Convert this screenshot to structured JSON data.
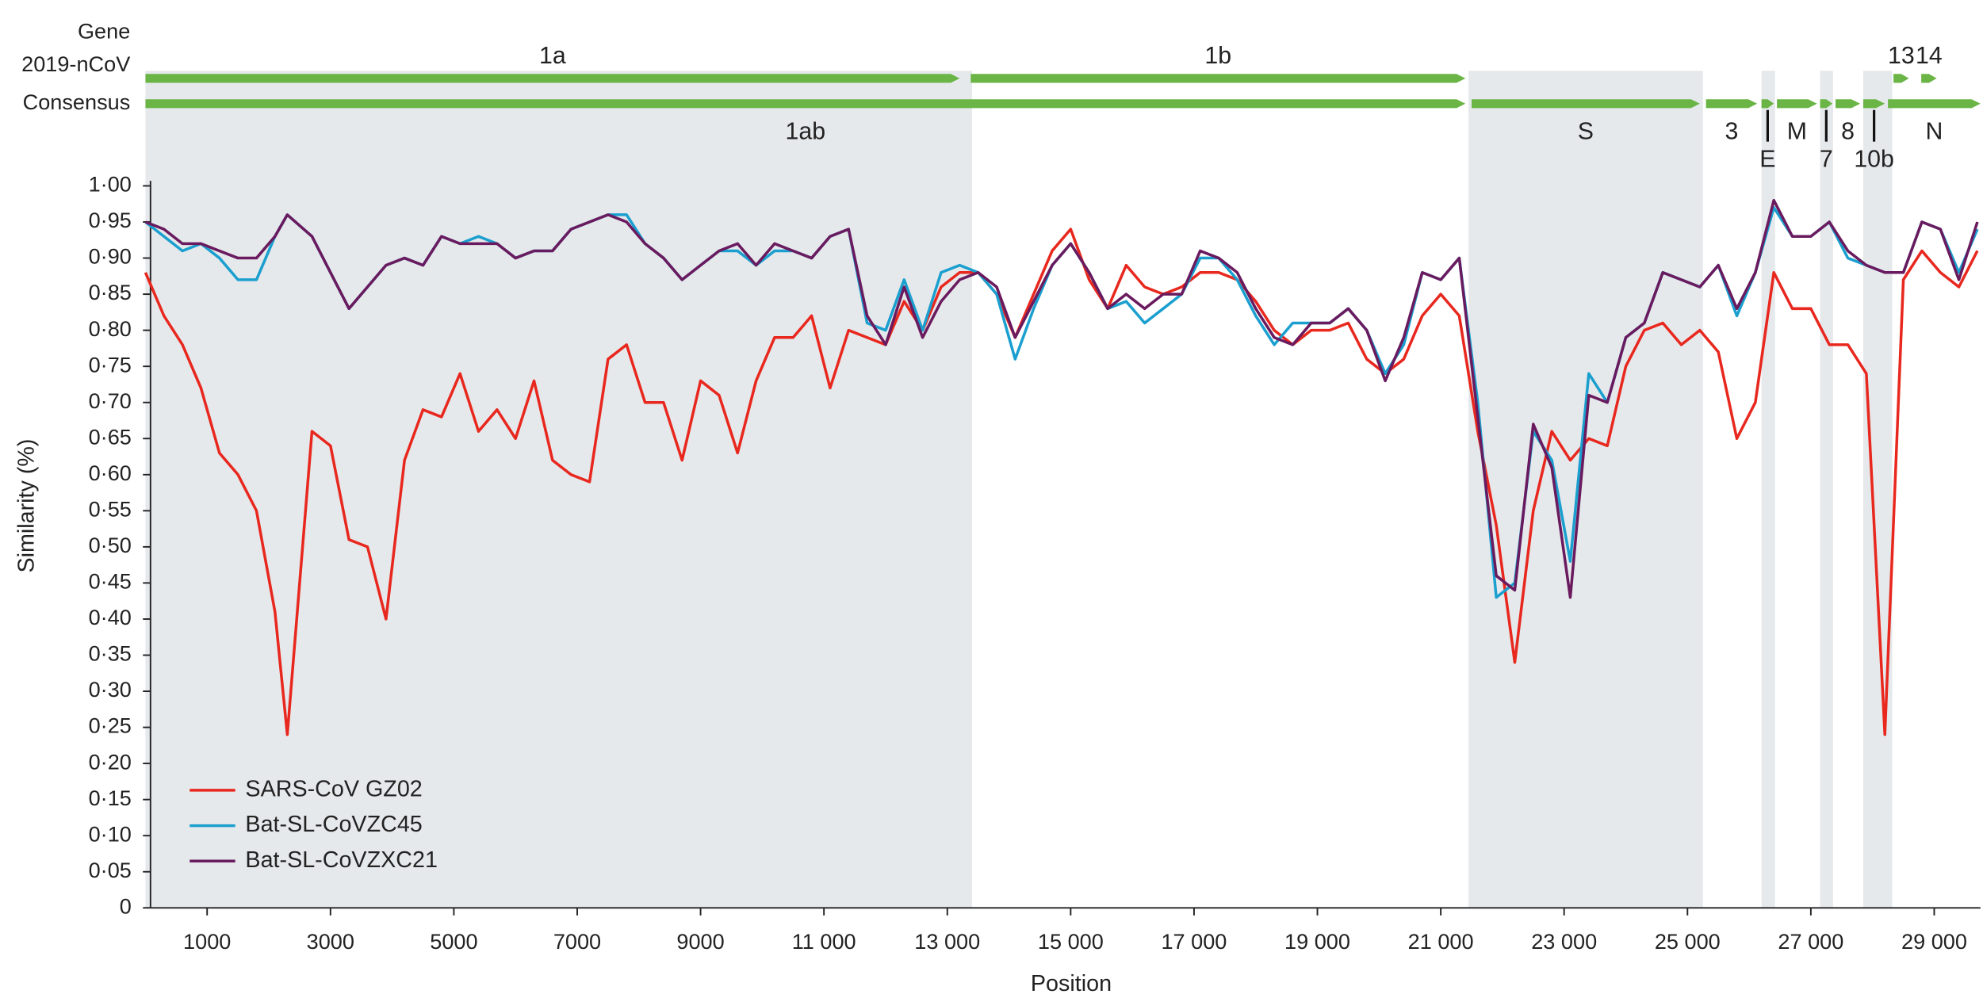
{
  "chart_data": {
    "type": "line",
    "row_labels": [
      "Gene",
      "2019-nCoV",
      "Consensus"
    ],
    "genes": [
      {
        "name": "1a",
        "start": 0,
        "end": 13200,
        "row": 1
      },
      {
        "name": "1b",
        "start": 13380,
        "end": 21400,
        "row": 1
      },
      {
        "name": "13",
        "start": 28340,
        "end": 28590,
        "row": 1
      },
      {
        "name": "14",
        "start": 28790,
        "end": 29040,
        "row": 1
      },
      {
        "name": "1ab",
        "start": 0,
        "end": 21400,
        "row": 2
      },
      {
        "name": "S",
        "start": 21500,
        "end": 25200,
        "row": 2
      },
      {
        "name": "3",
        "start": 25300,
        "end": 26130,
        "row": 2
      },
      {
        "name": "E",
        "start": 26200,
        "end": 26400,
        "row": 2,
        "leader": true
      },
      {
        "name": "M",
        "start": 26450,
        "end": 27100,
        "row": 2
      },
      {
        "name": "7",
        "start": 27150,
        "end": 27350,
        "row": 2,
        "leader": true
      },
      {
        "name": "8",
        "start": 27400,
        "end": 27800,
        "row": 2
      },
      {
        "name": "10b",
        "start": 27850,
        "end": 28200,
        "row": 2,
        "leader": true
      },
      {
        "name": "N",
        "start": 28250,
        "end": 29750,
        "row": 2
      }
    ],
    "shaded": [
      [
        0,
        13400
      ],
      [
        21450,
        25250
      ],
      [
        26200,
        26420
      ],
      [
        27150,
        27360
      ],
      [
        27850,
        28320
      ]
    ],
    "shade_color": "#e6e9ec",
    "gene_color": "#6ab545",
    "xlabel": "Position",
    "ylabel": "Similarity (%)",
    "xlim": [
      0,
      29750
    ],
    "ylim": [
      0,
      1
    ],
    "xticks": [
      1000,
      3000,
      5000,
      7000,
      9000,
      {
        "value": 11000,
        "label": "11 000"
      },
      {
        "value": 13000,
        "label": "13 000"
      },
      {
        "value": 15000,
        "label": "15 000"
      },
      {
        "value": 17000,
        "label": "17 000"
      },
      {
        "value": 19000,
        "label": "19 000"
      },
      {
        "value": 21000,
        "label": "21 000"
      },
      {
        "value": 23000,
        "label": "23 000"
      },
      {
        "value": 25000,
        "label": "25 000"
      },
      {
        "value": 27000,
        "label": "27 000"
      },
      {
        "value": 29000,
        "label": "29 000"
      }
    ],
    "yticks": [
      0,
      {
        "value": 0.05,
        "label": "0·05"
      },
      {
        "value": 0.1,
        "label": "0·10"
      },
      {
        "value": 0.15,
        "label": "0·15"
      },
      {
        "value": 0.2,
        "label": "0·20"
      },
      {
        "value": 0.25,
        "label": "0·25"
      },
      {
        "value": 0.3,
        "label": "0·30"
      },
      {
        "value": 0.35,
        "label": "0·35"
      },
      {
        "value": 0.4,
        "label": "0·40"
      },
      {
        "value": 0.45,
        "label": "0·45"
      },
      {
        "value": 0.5,
        "label": "0·50"
      },
      {
        "value": 0.55,
        "label": "0·55"
      },
      {
        "value": 0.6,
        "label": "0·60"
      },
      {
        "value": 0.65,
        "label": "0·65"
      },
      {
        "value": 0.7,
        "label": "0·70"
      },
      {
        "value": 0.75,
        "label": "0·75"
      },
      {
        "value": 0.8,
        "label": "0·80"
      },
      {
        "value": 0.85,
        "label": "0·85"
      },
      {
        "value": 0.9,
        "label": "0·90"
      },
      {
        "value": 0.95,
        "label": "0·95"
      },
      {
        "value": 1,
        "label": "1·00"
      }
    ],
    "legend": "lower left",
    "x": [
      0,
      300,
      600,
      900,
      1200,
      1500,
      1800,
      2100,
      2300,
      2700,
      3000,
      3300,
      3600,
      3900,
      4200,
      4500,
      4800,
      5100,
      5400,
      5700,
      6000,
      6300,
      6600,
      6900,
      7200,
      7500,
      7800,
      8100,
      8400,
      8700,
      9000,
      9300,
      9600,
      9900,
      10200,
      10500,
      10800,
      11100,
      11400,
      11700,
      12000,
      12300,
      12600,
      12900,
      13200,
      13500,
      13800,
      14100,
      14400,
      14700,
      15000,
      15300,
      15600,
      15900,
      16200,
      16500,
      16800,
      17100,
      17400,
      17700,
      18000,
      18300,
      18600,
      18900,
      19200,
      19500,
      19800,
      20100,
      20400,
      20700,
      21000,
      21300,
      21600,
      21900,
      22200,
      22500,
      22800,
      23100,
      23400,
      23700,
      24000,
      24300,
      24600,
      24900,
      25200,
      25500,
      25800,
      26100,
      26400,
      26700,
      27000,
      27300,
      27600,
      27900,
      28200,
      28500,
      28800,
      29100,
      29400,
      29700
    ],
    "series": [
      {
        "name": "SARS-CoV GZ02",
        "color": "#e8281e",
        "values": [
          0.88,
          0.82,
          0.78,
          0.72,
          0.63,
          0.6,
          0.55,
          0.41,
          0.24,
          0.66,
          0.64,
          0.51,
          0.5,
          0.4,
          0.62,
          0.69,
          0.68,
          0.74,
          0.66,
          0.69,
          0.65,
          0.73,
          0.62,
          0.6,
          0.59,
          0.76,
          0.78,
          0.7,
          0.7,
          0.62,
          0.73,
          0.71,
          0.63,
          0.73,
          0.79,
          0.79,
          0.82,
          0.72,
          0.8,
          0.79,
          0.78,
          0.84,
          0.8,
          0.86,
          0.88,
          0.88,
          0.85,
          0.79,
          0.85,
          0.91,
          0.94,
          0.87,
          0.83,
          0.89,
          0.86,
          0.85,
          0.86,
          0.88,
          0.88,
          0.87,
          0.84,
          0.8,
          0.78,
          0.8,
          0.8,
          0.81,
          0.76,
          0.74,
          0.76,
          0.82,
          0.85,
          0.82,
          0.66,
          0.53,
          0.34,
          0.55,
          0.66,
          0.62,
          0.65,
          0.64,
          0.75,
          0.8,
          0.81,
          0.78,
          0.8,
          0.77,
          0.65,
          0.7,
          0.88,
          0.83,
          0.83,
          0.78,
          0.78,
          0.74,
          0.24,
          0.87,
          0.91,
          0.88,
          0.86,
          0.91
        ]
      },
      {
        "name": "Bat-SL-CoVZC45",
        "color": "#1a9fcf",
        "values": [
          0.95,
          0.93,
          0.91,
          0.92,
          0.9,
          0.87,
          0.87,
          0.93,
          0.96,
          0.93,
          0.88,
          0.83,
          0.86,
          0.89,
          0.9,
          0.89,
          0.93,
          0.92,
          0.93,
          0.92,
          0.9,
          0.91,
          0.91,
          0.94,
          0.95,
          0.96,
          0.96,
          0.92,
          0.9,
          0.87,
          0.89,
          0.91,
          0.91,
          0.89,
          0.91,
          0.91,
          0.9,
          0.93,
          0.94,
          0.81,
          0.8,
          0.87,
          0.8,
          0.88,
          0.89,
          0.88,
          0.85,
          0.76,
          0.83,
          0.89,
          0.92,
          0.88,
          0.83,
          0.84,
          0.81,
          0.83,
          0.85,
          0.9,
          0.9,
          0.87,
          0.82,
          0.78,
          0.81,
          0.81,
          0.81,
          0.83,
          0.8,
          0.74,
          0.78,
          0.88,
          0.87,
          0.9,
          0.7,
          0.43,
          0.45,
          0.66,
          0.62,
          0.48,
          0.74,
          0.7,
          0.79,
          0.81,
          0.88,
          0.87,
          0.86,
          0.89,
          0.82,
          0.88,
          0.97,
          0.93,
          0.93,
          0.95,
          0.9,
          0.89,
          0.88,
          0.88,
          0.95,
          0.94,
          0.88,
          0.94
        ]
      },
      {
        "name": "Bat-SL-CoVZXC21",
        "color": "#6a1a5e",
        "values": [
          0.95,
          0.94,
          0.92,
          0.92,
          0.91,
          0.9,
          0.9,
          0.93,
          0.96,
          0.93,
          0.88,
          0.83,
          0.86,
          0.89,
          0.9,
          0.89,
          0.93,
          0.92,
          0.92,
          0.92,
          0.9,
          0.91,
          0.91,
          0.94,
          0.95,
          0.96,
          0.95,
          0.92,
          0.9,
          0.87,
          0.89,
          0.91,
          0.92,
          0.89,
          0.92,
          0.91,
          0.9,
          0.93,
          0.94,
          0.82,
          0.78,
          0.86,
          0.79,
          0.84,
          0.87,
          0.88,
          0.86,
          0.79,
          0.84,
          0.89,
          0.92,
          0.88,
          0.83,
          0.85,
          0.83,
          0.85,
          0.85,
          0.91,
          0.9,
          0.88,
          0.83,
          0.79,
          0.78,
          0.81,
          0.81,
          0.83,
          0.8,
          0.73,
          0.79,
          0.88,
          0.87,
          0.9,
          0.68,
          0.46,
          0.44,
          0.67,
          0.61,
          0.43,
          0.71,
          0.7,
          0.79,
          0.81,
          0.88,
          0.87,
          0.86,
          0.89,
          0.83,
          0.88,
          0.98,
          0.93,
          0.93,
          0.95,
          0.91,
          0.89,
          0.88,
          0.88,
          0.95,
          0.94,
          0.87,
          0.95
        ]
      }
    ]
  }
}
